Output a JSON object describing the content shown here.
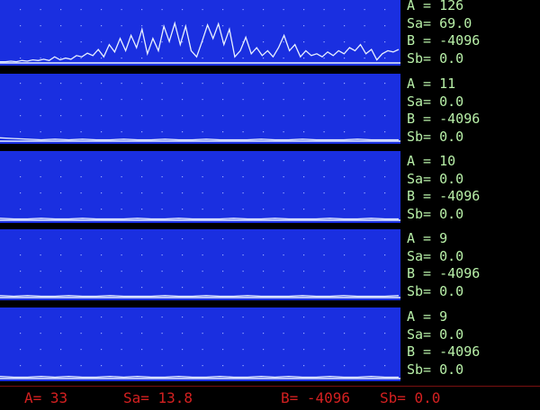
{
  "colors": {
    "screen": "#1a2fe0",
    "trace": "#e8f0ff",
    "readout": "#b8f0a8",
    "footer": "#d42020"
  },
  "channels": [
    {
      "A": "A = 126",
      "Sa": "Sa= 69.0",
      "B": "B = -4096",
      "Sb": "Sb= 0.0",
      "trace": [
        0.02,
        0.02,
        0.03,
        0.02,
        0.04,
        0.03,
        0.05,
        0.04,
        0.06,
        0.04,
        0.1,
        0.05,
        0.08,
        0.06,
        0.12,
        0.1,
        0.16,
        0.12,
        0.22,
        0.1,
        0.3,
        0.18,
        0.4,
        0.2,
        0.45,
        0.25,
        0.55,
        0.15,
        0.4,
        0.2,
        0.6,
        0.35,
        0.65,
        0.3,
        0.6,
        0.2,
        0.1,
        0.35,
        0.62,
        0.4,
        0.64,
        0.3,
        0.55,
        0.1,
        0.2,
        0.42,
        0.15,
        0.25,
        0.12,
        0.2,
        0.1,
        0.25,
        0.45,
        0.2,
        0.3,
        0.1,
        0.2,
        0.12,
        0.15,
        0.1,
        0.18,
        0.12,
        0.2,
        0.15,
        0.25,
        0.2,
        0.3,
        0.15,
        0.22,
        0.05,
        0.15,
        0.2,
        0.18,
        0.22
      ]
    },
    {
      "A": "A = 11",
      "Sa": "Sa= 0.0",
      "B": "B = -4096",
      "Sb": "Sb= 0.0",
      "trace": [
        0.05,
        0.04,
        0.03,
        0.02,
        0.03,
        0.02,
        0.03,
        0.02,
        0.02,
        0.03,
        0.02,
        0.02,
        0.03,
        0.02,
        0.02,
        0.03,
        0.02,
        0.02,
        0.02,
        0.03,
        0.02,
        0.02,
        0.03,
        0.02,
        0.02,
        0.02,
        0.03,
        0.02,
        0.02,
        0.02
      ]
    },
    {
      "A": "A = 10",
      "Sa": "Sa= 0.0",
      "B": "B = -4096",
      "Sb": "Sb= 0.0",
      "trace": [
        0.03,
        0.02,
        0.02,
        0.03,
        0.02,
        0.02,
        0.03,
        0.02,
        0.02,
        0.02,
        0.03,
        0.02,
        0.02,
        0.03,
        0.02,
        0.02,
        0.02,
        0.03,
        0.02,
        0.02,
        0.03,
        0.02,
        0.02,
        0.02,
        0.03,
        0.02,
        0.02,
        0.03,
        0.02,
        0.02
      ]
    },
    {
      "A": "A = 9",
      "Sa": "Sa= 0.0",
      "B": "B = -4096",
      "Sb": "Sb= 0.0",
      "trace": [
        0.03,
        0.02,
        0.03,
        0.02,
        0.02,
        0.03,
        0.02,
        0.02,
        0.03,
        0.02,
        0.02,
        0.02,
        0.03,
        0.02,
        0.02,
        0.03,
        0.02,
        0.02,
        0.03,
        0.02,
        0.02,
        0.02,
        0.03,
        0.02,
        0.02,
        0.03,
        0.02,
        0.02,
        0.02,
        0.03
      ]
    },
    {
      "A": "A = 9",
      "Sa": "Sa= 0.0",
      "B": "B = -4096",
      "Sb": "Sb= 0.0",
      "trace": [
        0.03,
        0.02,
        0.02,
        0.03,
        0.02,
        0.03,
        0.02,
        0.02,
        0.03,
        0.02,
        0.03,
        0.02,
        0.02,
        0.03,
        0.02,
        0.02,
        0.03,
        0.02,
        0.02,
        0.03,
        0.02,
        0.03,
        0.02,
        0.02,
        0.03,
        0.02,
        0.02,
        0.03,
        0.02,
        0.02
      ]
    }
  ],
  "footer": {
    "A": "A= 33",
    "Sa": "Sa= 13.8",
    "B": "B= -4096",
    "Sb": "Sb= 0.0"
  }
}
